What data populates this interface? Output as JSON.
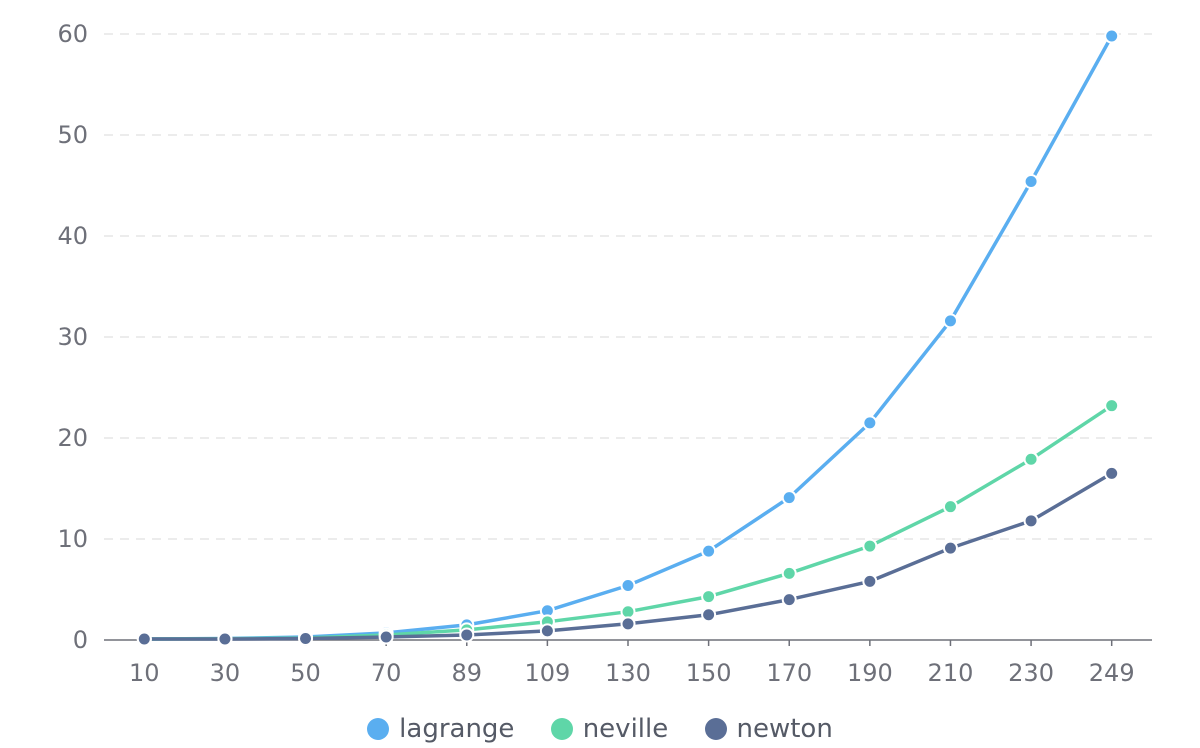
{
  "chart_data": {
    "type": "line",
    "categories": [
      "10",
      "30",
      "50",
      "70",
      "89",
      "109",
      "130",
      "150",
      "170",
      "190",
      "210",
      "230",
      "249"
    ],
    "ylim": [
      0,
      60
    ],
    "yticks": [
      0,
      10,
      20,
      30,
      40,
      50,
      60
    ],
    "grid": true,
    "legend_position": "bottom",
    "series": [
      {
        "name": "lagrange",
        "color": "#5aaef0",
        "values": [
          0.1,
          0.15,
          0.3,
          0.7,
          1.5,
          2.9,
          5.4,
          8.8,
          14.1,
          21.5,
          31.6,
          45.4,
          59.8
        ]
      },
      {
        "name": "neville",
        "color": "#5fd6a8",
        "values": [
          0.1,
          0.12,
          0.2,
          0.5,
          1.0,
          1.8,
          2.8,
          4.3,
          6.6,
          9.3,
          13.2,
          17.9,
          23.2
        ]
      },
      {
        "name": "newton",
        "color": "#5a6e96",
        "values": [
          0.1,
          0.1,
          0.15,
          0.3,
          0.5,
          0.9,
          1.6,
          2.5,
          4.0,
          5.8,
          9.1,
          11.8,
          16.5
        ]
      }
    ]
  }
}
